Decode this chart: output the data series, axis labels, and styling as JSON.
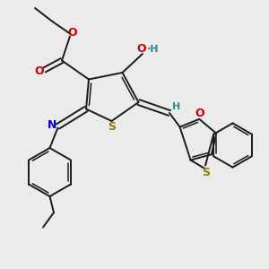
{
  "background_color": "#ebebeb",
  "bond_color": "#1a1a1a",
  "sulfur_color": "#8b8000",
  "oxygen_color": "#cc0000",
  "nitrogen_color": "#0000cc",
  "teal_color": "#2e8b8b",
  "figsize": [
    3.0,
    3.0
  ],
  "dpi": 100,
  "xlim": [
    0,
    10
  ],
  "ylim": [
    0,
    10
  ]
}
